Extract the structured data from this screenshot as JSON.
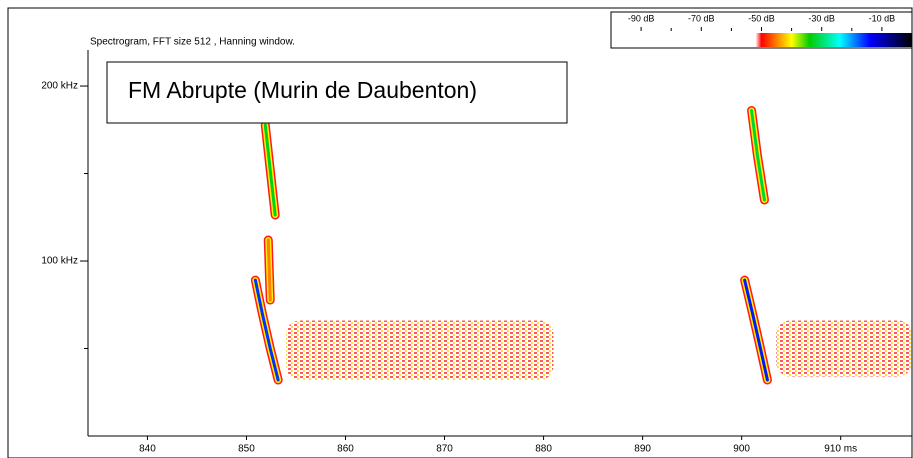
{
  "chart_data": {
    "type": "spectrogram",
    "title": "Spectrogram, FFT size 512 , Hanning window.",
    "annotation": "FM Abrupte (Murin de Daubenton)",
    "xlim": [
      834,
      917.2
    ],
    "xticks": [
      840,
      850,
      860,
      870,
      880,
      890,
      900,
      {
        "value": 910,
        "label": "910 ms"
      }
    ],
    "ylim": [
      0,
      220.6
    ],
    "yticks": [
      {
        "value": 100,
        "label": "100 kHz"
      },
      {
        "value": 200,
        "label": "200 kHz"
      }
    ],
    "yminor_ticks": [
      50,
      150
    ],
    "clim": [
      -100,
      0
    ],
    "cticks": [
      {
        "value": -90,
        "label": "-90 dB"
      },
      {
        "value": -70,
        "label": "-70 dB"
      },
      {
        "value": -50,
        "label": "-50 dB"
      },
      {
        "value": -30,
        "label": "-30 dB"
      },
      {
        "value": -10,
        "label": "-10 dB"
      }
    ],
    "cminor_ticks": [
      -80,
      -60,
      -40,
      -20
    ],
    "colormap": [
      {
        "db": -52,
        "color": "#ffffff"
      },
      {
        "db": -50,
        "color": "#ff0000"
      },
      {
        "db": -40,
        "color": "#ffff00"
      },
      {
        "db": -34,
        "color": "#00cc00"
      },
      {
        "db": -24,
        "color": "#00ffff"
      },
      {
        "db": -14,
        "color": "#0000ff"
      },
      {
        "db": 0,
        "color": "#000000"
      }
    ],
    "traces": [
      {
        "x": [
          851.9,
          852.4,
          852.9
        ],
        "y": [
          177.7,
          152,
          126.3
        ],
        "level_db": -33
      },
      {
        "x": [
          852.2,
          852.4
        ],
        "y": [
          112,
          77.7
        ],
        "level_db": -45
      },
      {
        "x": [
          850.9,
          851.6,
          852.4,
          853.2
        ],
        "y": [
          89.1,
          70,
          50,
          32
        ],
        "level_db": -16
      },
      {
        "x": [
          901.0,
          901.6,
          902.3
        ],
        "y": [
          186,
          160,
          134.9
        ],
        "level_db": -32
      },
      {
        "x": [
          900.3,
          901.1,
          901.9,
          902.6
        ],
        "y": [
          89.1,
          70,
          50,
          32
        ],
        "level_db": -15
      }
    ],
    "clutter": [
      {
        "x": [
          854,
          881
        ],
        "y": [
          32,
          66
        ],
        "level_db": -44
      },
      {
        "x": [
          903.5,
          917.2
        ],
        "y": [
          34,
          66
        ],
        "level_db": -43
      }
    ]
  }
}
